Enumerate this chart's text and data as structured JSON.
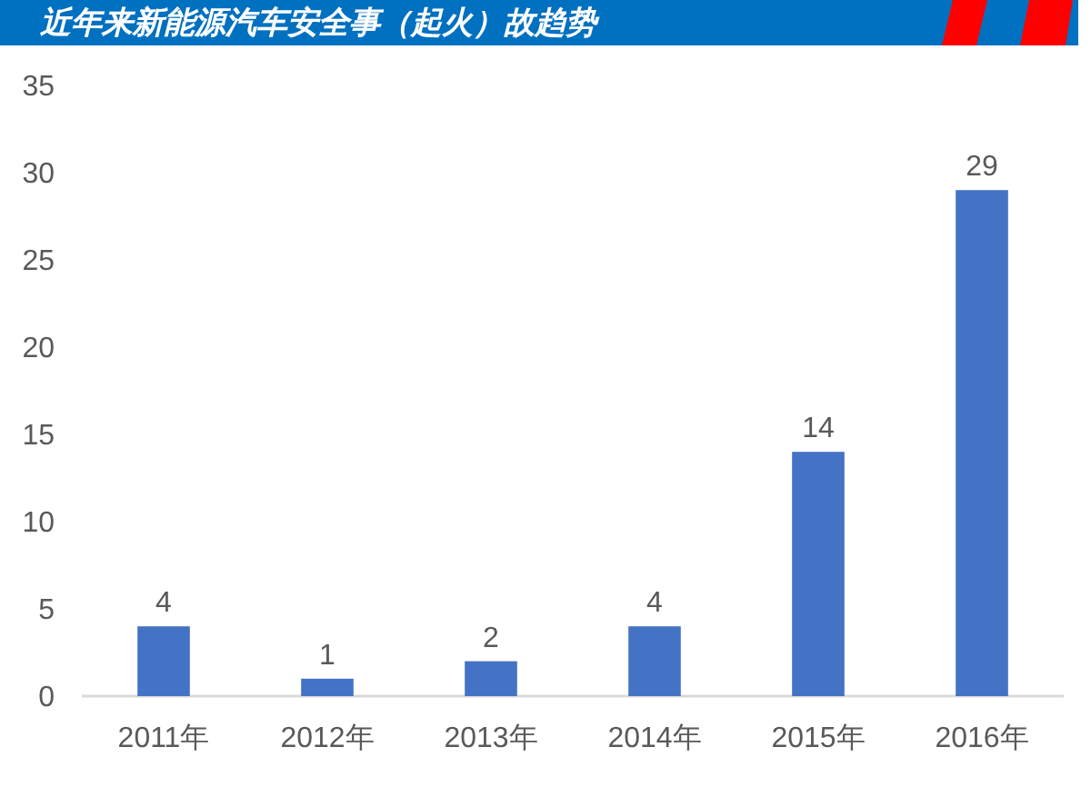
{
  "chart_data": {
    "type": "bar",
    "title": "近年来新能源汽车安全事（起火）故趋势",
    "categories": [
      "2011年",
      "2012年",
      "2013年",
      "2014年",
      "2015年",
      "2016年"
    ],
    "values": [
      4,
      1,
      2,
      4,
      14,
      29
    ],
    "color": "#4472c4",
    "ylim": [
      0,
      35
    ],
    "yticks": [
      0,
      5,
      10,
      15,
      20,
      25,
      30,
      35
    ],
    "grid": false,
    "data_labels": true
  }
}
